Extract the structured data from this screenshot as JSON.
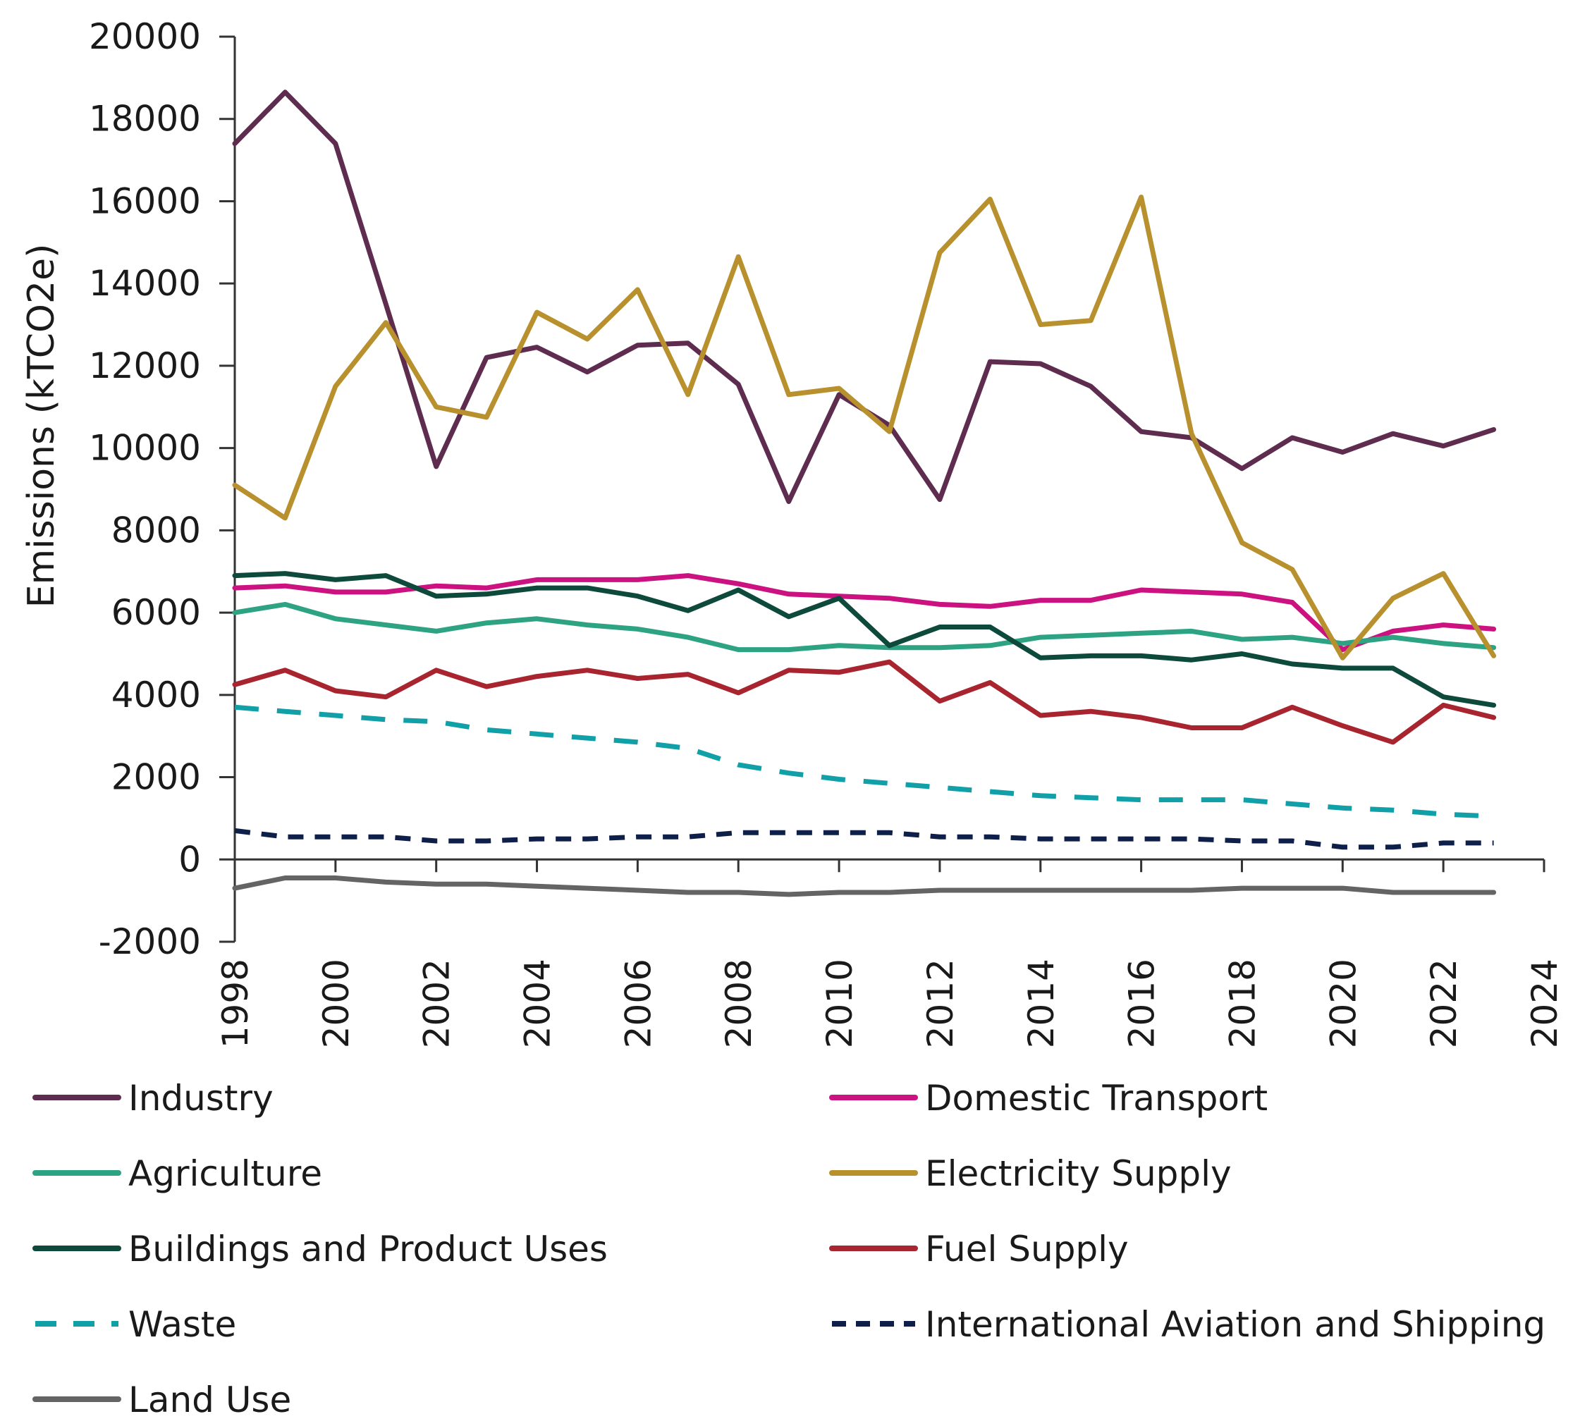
{
  "chart_data": {
    "type": "line",
    "title": "",
    "xlabel": "",
    "ylabel": "Emissions (kTCO2e)",
    "xlim": [
      1998,
      2024
    ],
    "ylim": [
      -2000,
      20000
    ],
    "x_ticks": [
      1998,
      2000,
      2002,
      2004,
      2006,
      2008,
      2010,
      2012,
      2014,
      2016,
      2018,
      2020,
      2022,
      2024
    ],
    "y_ticks": [
      -2000,
      0,
      2000,
      4000,
      6000,
      8000,
      10000,
      12000,
      14000,
      16000,
      18000,
      20000
    ],
    "grid": false,
    "legend_position": "bottom",
    "x": [
      1998,
      1999,
      2000,
      2001,
      2002,
      2003,
      2004,
      2005,
      2006,
      2007,
      2008,
      2009,
      2010,
      2011,
      2012,
      2013,
      2014,
      2015,
      2016,
      2017,
      2018,
      2019,
      2020,
      2021,
      2022,
      2023
    ],
    "series": [
      {
        "name": "Industry",
        "color": "#5e2c4e",
        "dash": "solid",
        "values": [
          17400,
          18650,
          17400,
          13500,
          9550,
          12200,
          12450,
          11850,
          12500,
          12550,
          11550,
          8700,
          11300,
          10550,
          8750,
          12100,
          12050,
          11500,
          10400,
          10250,
          9500,
          10250,
          9900,
          10350,
          10050,
          10450
        ]
      },
      {
        "name": "Domestic Transport",
        "color": "#cc1180",
        "dash": "solid",
        "values": [
          6600,
          6650,
          6500,
          6500,
          6650,
          6600,
          6800,
          6800,
          6800,
          6900,
          6700,
          6450,
          6400,
          6350,
          6200,
          6150,
          6300,
          6300,
          6550,
          6500,
          6450,
          6250,
          5100,
          5550,
          5700,
          5600
        ]
      },
      {
        "name": "Agriculture",
        "color": "#2da383",
        "dash": "solid",
        "values": [
          6000,
          6200,
          5850,
          5700,
          5550,
          5750,
          5850,
          5700,
          5600,
          5400,
          5100,
          5100,
          5200,
          5150,
          5150,
          5200,
          5400,
          5450,
          5500,
          5550,
          5350,
          5400,
          5250,
          5400,
          5250,
          5150
        ]
      },
      {
        "name": "Electricity Supply",
        "color": "#b8912e",
        "dash": "solid",
        "values": [
          9100,
          8300,
          11500,
          13050,
          11000,
          10750,
          13300,
          12650,
          13850,
          11300,
          14650,
          11300,
          11450,
          10400,
          14750,
          16050,
          13000,
          13100,
          16100,
          10350,
          7700,
          7050,
          4900,
          6350,
          6950,
          4950
        ]
      },
      {
        "name": "Buildings and Product Uses",
        "color": "#0d4a3c",
        "dash": "solid",
        "values": [
          6900,
          6950,
          6800,
          6900,
          6400,
          6450,
          6600,
          6600,
          6400,
          6050,
          6550,
          5900,
          6350,
          5200,
          5650,
          5650,
          4900,
          4950,
          4950,
          4850,
          5000,
          4750,
          4650,
          4650,
          3950,
          3750
        ]
      },
      {
        "name": "Fuel Supply",
        "color": "#a82530",
        "dash": "solid",
        "values": [
          4250,
          4600,
          4100,
          3950,
          4600,
          4200,
          4450,
          4600,
          4400,
          4500,
          4050,
          4600,
          4550,
          4800,
          3850,
          4300,
          3500,
          3600,
          3450,
          3200,
          3200,
          3700,
          3250,
          2850,
          3750,
          3450
        ]
      },
      {
        "name": "Waste",
        "color": "#12a0a8",
        "dash": "dashed",
        "values": [
          3700,
          3600,
          3500,
          3400,
          3350,
          3150,
          3050,
          2950,
          2850,
          2700,
          2300,
          2100,
          1950,
          1850,
          1750,
          1650,
          1550,
          1500,
          1450,
          1450,
          1450,
          1350,
          1250,
          1200,
          1100,
          1050
        ]
      },
      {
        "name": "International Aviation and Shipping",
        "color": "#0e1f4a",
        "dash": "dotted",
        "values": [
          700,
          550,
          550,
          550,
          450,
          450,
          500,
          500,
          550,
          550,
          650,
          650,
          650,
          650,
          550,
          550,
          500,
          500,
          500,
          500,
          450,
          450,
          300,
          300,
          400,
          400
        ]
      },
      {
        "name": "Land Use",
        "color": "#646464",
        "dash": "solid",
        "values": [
          -700,
          -450,
          -450,
          -550,
          -600,
          -600,
          -650,
          -700,
          -750,
          -800,
          -800,
          -850,
          -800,
          -800,
          -750,
          -750,
          -750,
          -750,
          -750,
          -750,
          -700,
          -700,
          -700,
          -800,
          -800,
          -800
        ]
      }
    ]
  }
}
